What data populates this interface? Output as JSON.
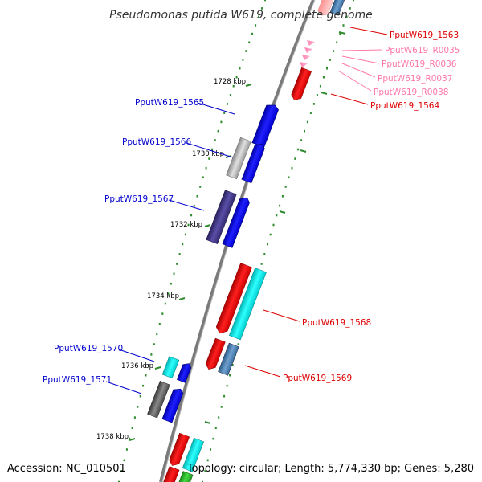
{
  "title": "Pseudomonas putida W619, complete genome",
  "footer": {
    "accession": "Accession: NC_010501",
    "summary": "Topology: circular; Length: 5,774,330 bp; Genes: 5,280"
  },
  "colors": {
    "backbone": "#808080",
    "tick": "#2e8b2e",
    "dots": "#2e8b2e",
    "forward_label": "#0000cc",
    "reverse_label": "#dd0000",
    "rna_label": "#ff77aa",
    "forward_gene": "#0000ee",
    "reverse_gene": "#ee0000"
  },
  "ticks": [
    {
      "label": "1728 kbp"
    },
    {
      "label": "1730 kbp"
    },
    {
      "label": "1732 kbp"
    },
    {
      "label": "1734 kbp"
    },
    {
      "label": "1736 kbp"
    },
    {
      "label": "1738 kbp"
    }
  ],
  "genes_left": [
    {
      "label": "PputW619_1565"
    },
    {
      "label": "PputW619_1566"
    },
    {
      "label": "PputW619_1567"
    },
    {
      "label": "PputW619_1570"
    },
    {
      "label": "PputW619_1571"
    }
  ],
  "genes_right": [
    {
      "label": "PputW619_1563"
    },
    {
      "label": "PputW619_R0035"
    },
    {
      "label": "PputW619_R0036"
    },
    {
      "label": "PputW619_R0037"
    },
    {
      "label": "PputW619_R0038"
    },
    {
      "label": "PputW619_1564"
    },
    {
      "label": "PputW619_1568"
    },
    {
      "label": "PputW619_1569"
    }
  ]
}
